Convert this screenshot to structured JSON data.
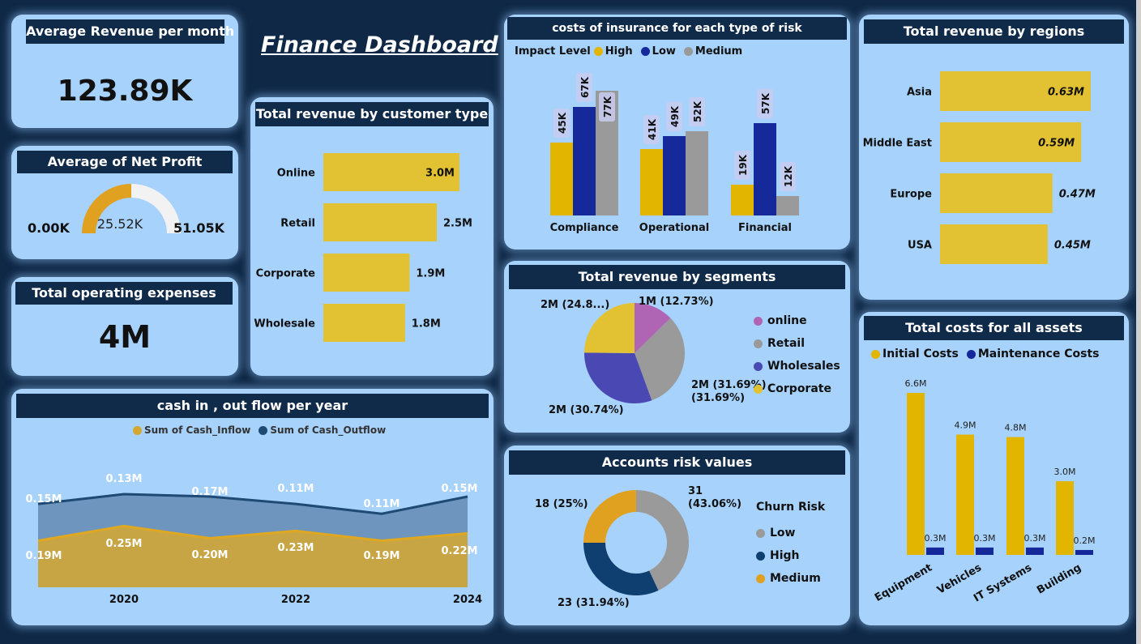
{
  "title": "Finance Dashboard",
  "colors": {
    "background": "#0f2846",
    "card": "#a7d2fb",
    "header": "#102a4a",
    "gold": "#e2c232",
    "navy": "#15299a",
    "gray": "#9a9a9a",
    "purple": "#b064b4",
    "indigo": "#4a49b4",
    "orange": "#e0a020",
    "darkblue": "#0f3f70"
  },
  "avg_revenue": {
    "title": "Average Revenue per month",
    "value": "123.89K"
  },
  "net_profit": {
    "title": "Average of Net Profit",
    "min": "0.00K",
    "max": "51.05K",
    "value_label": "25.52K",
    "fraction": 0.5
  },
  "op_expenses": {
    "title": "Total operating expenses",
    "value": "4M"
  },
  "customer_type": {
    "title": "Total revenue by customer type"
  },
  "insurance": {
    "title": "costs of insurance for each type of risk",
    "legend_title": "Impact Level"
  },
  "regions": {
    "title": "Total revenue by regions"
  },
  "segments": {
    "title": "Total revenue by segments"
  },
  "risk": {
    "title": "Accounts risk values",
    "legend_title": "Churn Risk"
  },
  "cashflow": {
    "title": "cash in , out flow per year"
  },
  "assets": {
    "title": "Total costs for all assets"
  },
  "chart_data": [
    {
      "id": "customer_type",
      "type": "bar",
      "orientation": "horizontal",
      "categories": [
        "Online",
        "Retail",
        "Corporate",
        "Wholesale"
      ],
      "values": [
        3.0,
        2.5,
        1.9,
        1.8
      ],
      "labels": [
        "3.0M",
        "2.5M",
        "1.9M",
        "1.8M"
      ],
      "xlim": [
        0,
        3.0
      ]
    },
    {
      "id": "insurance",
      "type": "bar",
      "categories": [
        "Compliance",
        "Operational",
        "Financial"
      ],
      "series": [
        {
          "name": "High",
          "color": "#e2b500",
          "values": [
            45,
            41,
            19
          ],
          "labels": [
            "45K",
            "41K",
            "19K"
          ]
        },
        {
          "name": "Low",
          "color": "#15299a",
          "values": [
            67,
            49,
            57
          ],
          "labels": [
            "67K",
            "49K",
            "57K"
          ]
        },
        {
          "name": "Medium",
          "color": "#9a9a9a",
          "values": [
            77,
            52,
            12
          ],
          "labels": [
            "77K",
            "52K",
            "12K"
          ]
        }
      ],
      "ylim": [
        0,
        80
      ]
    },
    {
      "id": "regions",
      "type": "bar",
      "orientation": "horizontal",
      "categories": [
        "Asia",
        "Middle East",
        "Europe",
        "USA"
      ],
      "values": [
        0.63,
        0.59,
        0.47,
        0.45
      ],
      "labels": [
        "0.63M",
        "0.59M",
        "0.47M",
        "0.45M"
      ],
      "xlim": [
        0,
        0.63
      ]
    },
    {
      "id": "segments",
      "type": "pie",
      "slices": [
        {
          "name": "online",
          "value": 12.73,
          "label": "1M (12.73%)",
          "color": "#b064b4"
        },
        {
          "name": "Retail",
          "value": 31.69,
          "label": "2M (31.69%)",
          "color": "#9a9a9a"
        },
        {
          "name": "Wholesales",
          "value": 30.74,
          "label": "2M (30.74%)",
          "color": "#4a49b4"
        },
        {
          "name": "Corporate",
          "value": 24.84,
          "label": "2M (24.8...)",
          "color": "#e2c232"
        }
      ]
    },
    {
      "id": "risk",
      "type": "pie",
      "donut": true,
      "slices": [
        {
          "name": "Low",
          "value": 31,
          "label": "31 (43.06%)",
          "color": "#9a9a9a"
        },
        {
          "name": "High",
          "value": 23,
          "label": "23 (31.94%)",
          "color": "#0f3f70"
        },
        {
          "name": "Medium",
          "value": 18,
          "label": "18 (25%)",
          "color": "#e0a020"
        }
      ]
    },
    {
      "id": "cashflow",
      "type": "area",
      "x": [
        2019,
        2020,
        2021,
        2022,
        2023,
        2024
      ],
      "x_ticks": [
        "2020",
        "2022",
        "2024"
      ],
      "series": [
        {
          "name": "Sum of Cash_Inflow",
          "color": "#d4a830",
          "values": [
            0.19,
            0.25,
            0.2,
            0.23,
            0.19,
            0.22
          ],
          "labels": [
            "0.19M",
            "0.25M",
            "0.20M",
            "0.23M",
            "0.19M",
            "0.22M"
          ]
        },
        {
          "name": "Sum of Cash_Outflow",
          "color": "#1e4a74",
          "values": [
            0.15,
            0.13,
            0.17,
            0.11,
            0.11,
            0.15
          ],
          "labels": [
            "0.15M",
            "0.13M",
            "0.17M",
            "0.11M",
            "0.11M",
            "0.15M"
          ]
        }
      ],
      "stacked": true
    },
    {
      "id": "assets",
      "type": "bar",
      "categories": [
        "Equipment",
        "Vehicles",
        "IT Systems",
        "Building"
      ],
      "series": [
        {
          "name": "Initial Costs",
          "color": "#e2b500",
          "values": [
            6.6,
            4.9,
            4.8,
            3.0
          ],
          "labels": [
            "6.6M",
            "4.9M",
            "4.8M",
            "3.0M"
          ]
        },
        {
          "name": "Maintenance Costs",
          "color": "#15299a",
          "values": [
            0.3,
            0.3,
            0.3,
            0.2
          ],
          "labels": [
            "0.3M",
            "0.3M",
            "0.3M",
            "0.2M"
          ]
        }
      ],
      "ylim": [
        0,
        6.6
      ]
    }
  ]
}
